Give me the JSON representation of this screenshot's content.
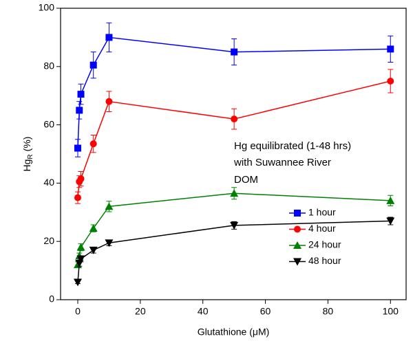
{
  "chart_data": {
    "type": "line",
    "xlabel": "Glutathione (μM)",
    "ylabel": {
      "main": "Hg",
      "sub": "R",
      "unit": "(%)"
    },
    "annotation": [
      "Hg equilibrated (1-48 hrs)",
      "with Suwannee River",
      "DOM"
    ],
    "x": [
      0,
      0.5,
      1,
      5,
      10,
      50,
      100
    ],
    "series": [
      {
        "name": "1 hour",
        "color": "#0000ff",
        "marker": "square",
        "values": [
          52,
          65,
          70.5,
          80.5,
          90,
          85,
          86
        ],
        "errors": [
          3,
          3,
          3.5,
          4.5,
          5,
          4.5,
          4.5
        ]
      },
      {
        "name": "4 hour",
        "color": "#ff0000",
        "marker": "circle",
        "values": [
          35,
          40.5,
          41.5,
          53.5,
          68,
          62,
          75
        ],
        "errors": [
          2,
          2,
          2.5,
          3,
          3.5,
          3.5,
          4
        ]
      },
      {
        "name": "24 hour",
        "color": "#008000",
        "marker": "triangle-up",
        "values": [
          12,
          15,
          18,
          24.5,
          32,
          36.5,
          34
        ],
        "errors": [
          1,
          1,
          1.2,
          1.2,
          1.8,
          2,
          1.8
        ]
      },
      {
        "name": "48 hour",
        "color": "#000000",
        "marker": "triangle-down",
        "values": [
          6,
          12.5,
          14,
          17,
          19.5,
          25.5,
          27
        ],
        "errors": [
          0.5,
          1,
          1,
          1,
          1,
          1.3,
          1.3
        ]
      }
    ],
    "xlim": [
      -5.5,
      105
    ],
    "ylim": [
      0,
      100
    ],
    "xticks": [
      0,
      20,
      40,
      60,
      80,
      100
    ],
    "yticks": [
      0,
      20,
      40,
      60,
      80,
      100
    ],
    "legend": "lower-right"
  }
}
